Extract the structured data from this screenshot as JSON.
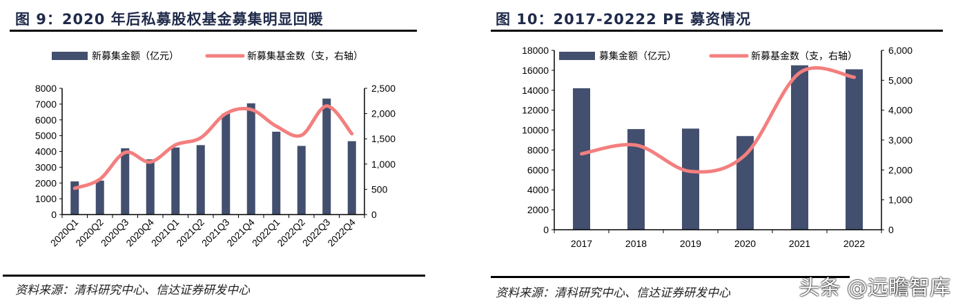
{
  "colors": {
    "bar": "#434f6e",
    "line": "#f37f7f",
    "title": "#1f2a4a"
  },
  "watermark": "头条 @远瞻智库",
  "chart_data": [
    {
      "type": "bar+line",
      "title": "图 9：2020 年后私募股权基金募集明显回暖",
      "source": "资料来源：清科研究中心、信达证券研发中心",
      "categories": [
        "2020Q1",
        "2020Q2",
        "2020Q3",
        "2020Q4",
        "2021Q1",
        "2021Q2",
        "2021Q3",
        "2021Q4",
        "2022Q1",
        "2022Q2",
        "2022Q3",
        "2022Q4"
      ],
      "series": [
        {
          "name": "新募集金额（亿元）",
          "type": "bar",
          "axis": "left",
          "values": [
            2100,
            2150,
            4200,
            3500,
            4250,
            4400,
            6400,
            7050,
            5250,
            4350,
            7350,
            4650
          ]
        },
        {
          "name": "新募集基金数（支，右轴）",
          "type": "line",
          "axis": "right",
          "values": [
            520,
            700,
            1230,
            1040,
            1380,
            1520,
            2000,
            2080,
            1750,
            1570,
            2150,
            1600
          ]
        }
      ],
      "ylim": [
        0,
        8000
      ],
      "yticks": [
        "0",
        "1000",
        "2000",
        "3000",
        "4000",
        "5000",
        "6000",
        "7000",
        "8000"
      ],
      "y2lim": [
        0,
        2500
      ],
      "y2ticks": [
        "0",
        "500",
        "1,000",
        "1,500",
        "2,000",
        "2,500"
      ],
      "legend": "top",
      "grid": false
    },
    {
      "type": "bar+line",
      "title": "图 10：2017-20222 PE 募资情况",
      "source": "资料来源：清科研究中心、信达证券研发中心",
      "categories": [
        "2017",
        "2018",
        "2019",
        "2020",
        "2021",
        "2022"
      ],
      "series": [
        {
          "name": "募集金额（亿元）",
          "type": "bar",
          "axis": "left",
          "values": [
            14200,
            10100,
            10150,
            9400,
            16500,
            16100
          ]
        },
        {
          "name": "新募基金数（支，右轴）",
          "type": "line",
          "axis": "right",
          "values": [
            2540,
            2830,
            1950,
            2500,
            5250,
            5100
          ]
        }
      ],
      "ylim": [
        0,
        18000
      ],
      "yticks": [
        "0",
        "2000",
        "4000",
        "6000",
        "8000",
        "10000",
        "12000",
        "14000",
        "16000",
        "18000"
      ],
      "y2lim": [
        0,
        6000
      ],
      "y2ticks": [
        "0",
        "1,000",
        "2,000",
        "3,000",
        "4,000",
        "5,000",
        "6,000"
      ],
      "legend": "top-inside",
      "grid": false
    }
  ]
}
